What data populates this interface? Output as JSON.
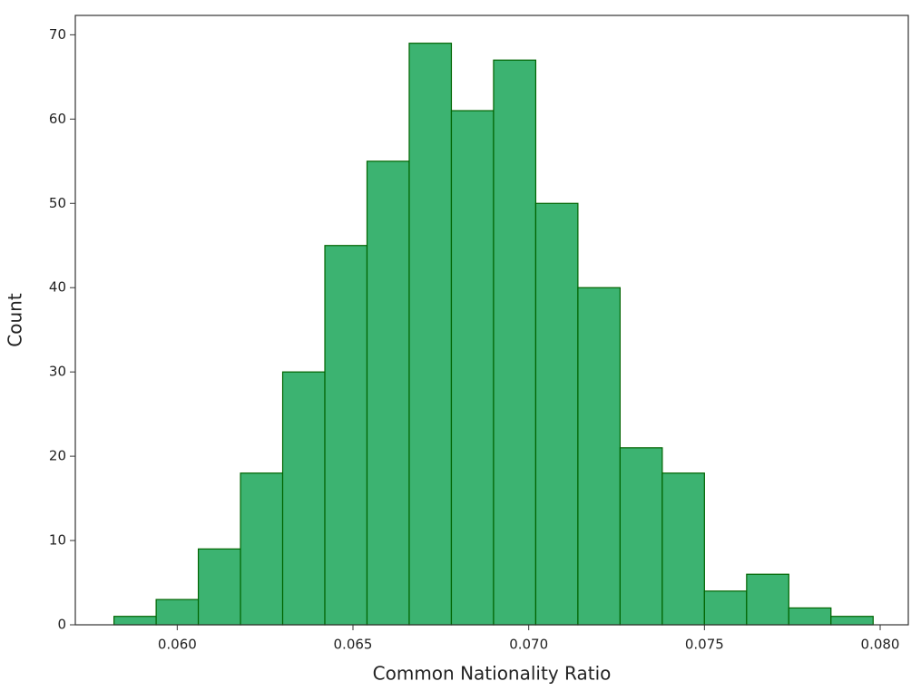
{
  "chart_data": {
    "type": "histogram",
    "xlabel": "Common Nationality Ratio",
    "ylabel": "Count",
    "bins": [
      0.0582,
      0.0594,
      0.0606,
      0.0618,
      0.063,
      0.0642,
      0.0654,
      0.0666,
      0.0678,
      0.069,
      0.0702,
      0.0714,
      0.0726,
      0.0738,
      0.075,
      0.0762,
      0.0774,
      0.0786,
      0.0798
    ],
    "values": [
      1,
      3,
      9,
      18,
      30,
      45,
      55,
      69,
      61,
      67,
      50,
      40,
      21,
      18,
      4,
      6,
      2,
      1
    ],
    "color": "#3cb371",
    "edgecolor": "#006400",
    "xlim": [
      0.0571,
      0.0808
    ],
    "xticks": [
      {
        "value": 0.06,
        "label": "0.060"
      },
      {
        "value": 0.065,
        "label": "0.065"
      },
      {
        "value": 0.07,
        "label": "0.070"
      },
      {
        "value": 0.075,
        "label": "0.075"
      },
      {
        "value": 0.08,
        "label": "0.080"
      }
    ],
    "ylim": [
      0,
      72.3
    ],
    "yticks": [
      0,
      10,
      20,
      30,
      40,
      50,
      60,
      70
    ],
    "grid": false
  }
}
